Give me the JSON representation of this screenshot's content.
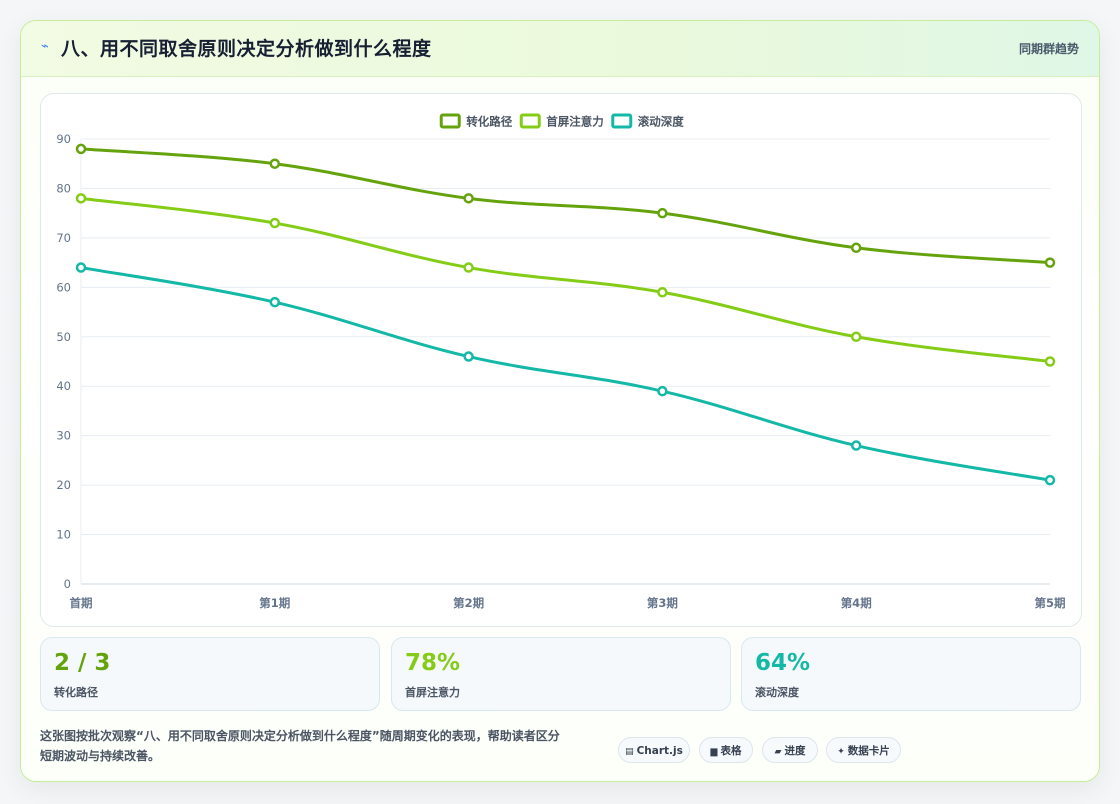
{
  "header": {
    "icon": "lightning-icon",
    "title": "八、用不同取舍原则决定分析做到什么程度",
    "right_label": "同期群趋势"
  },
  "chart_data": {
    "type": "line",
    "categories": [
      "首期",
      "第1期",
      "第2期",
      "第3期",
      "第4期",
      "第5期"
    ],
    "series": [
      {
        "name": "转化路径",
        "color": "#65a30d",
        "values": [
          88,
          85,
          78,
          75,
          68,
          65
        ]
      },
      {
        "name": "首屏注意力",
        "color": "#84cc16",
        "values": [
          78,
          73,
          64,
          59,
          50,
          45
        ]
      },
      {
        "name": "滚动深度",
        "color": "#14b8a6",
        "values": [
          64,
          57,
          46,
          39,
          28,
          21
        ]
      }
    ],
    "ylim": [
      0,
      90
    ],
    "yticks": [
      0,
      10,
      20,
      30,
      40,
      50,
      60,
      70,
      80,
      90
    ],
    "grid": true,
    "legend": "top-center"
  },
  "stats": [
    {
      "value": "2 / 3",
      "label": "转化路径",
      "color": "#65a30d"
    },
    {
      "value": "78%",
      "label": "首屏注意力",
      "color": "#84cc16"
    },
    {
      "value": "64%",
      "label": "滚动深度",
      "color": "#14b8a6"
    }
  ],
  "footer": {
    "description_line1": "这张图按批次观察“八、用不同取舍原则决定分析做到什么程度”随周期变化的表现，帮助读者区分",
    "description_line2": "短期波动与持续改善。",
    "chips": [
      {
        "icon": "table-icon",
        "glyph": "▤",
        "label": "Chart.js"
      },
      {
        "icon": "grid-icon",
        "glyph": "▆",
        "label": "表格"
      },
      {
        "icon": "progress-icon",
        "glyph": "▰",
        "label": "进度"
      },
      {
        "icon": "sparkle-icon",
        "glyph": "✦",
        "label": "数据卡片"
      }
    ]
  }
}
